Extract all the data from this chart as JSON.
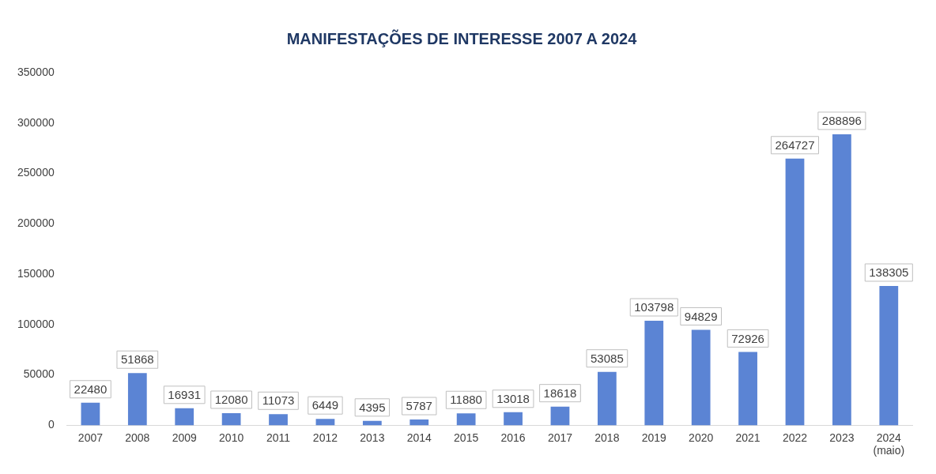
{
  "chart_data": {
    "type": "bar",
    "title": "MANIFESTAÇÕES DE INTERESSE 2007 A 2024",
    "categories": [
      "2007",
      "2008",
      "2009",
      "2010",
      "2011",
      "2012",
      "2013",
      "2014",
      "2015",
      "2016",
      "2017",
      "2018",
      "2019",
      "2020",
      "2021",
      "2022",
      "2023",
      "2024\n(maio)"
    ],
    "values": [
      22480,
      51868,
      16931,
      12080,
      11073,
      6449,
      4395,
      5787,
      11880,
      13018,
      18618,
      53085,
      103798,
      94829,
      72926,
      264727,
      288896,
      138305
    ],
    "color": "#5b84d4",
    "ylim": [
      0,
      350000
    ],
    "yticks": [
      0,
      50000,
      100000,
      150000,
      200000,
      250000,
      300000,
      350000
    ],
    "grid": false,
    "legend": false,
    "data_labels": true
  }
}
